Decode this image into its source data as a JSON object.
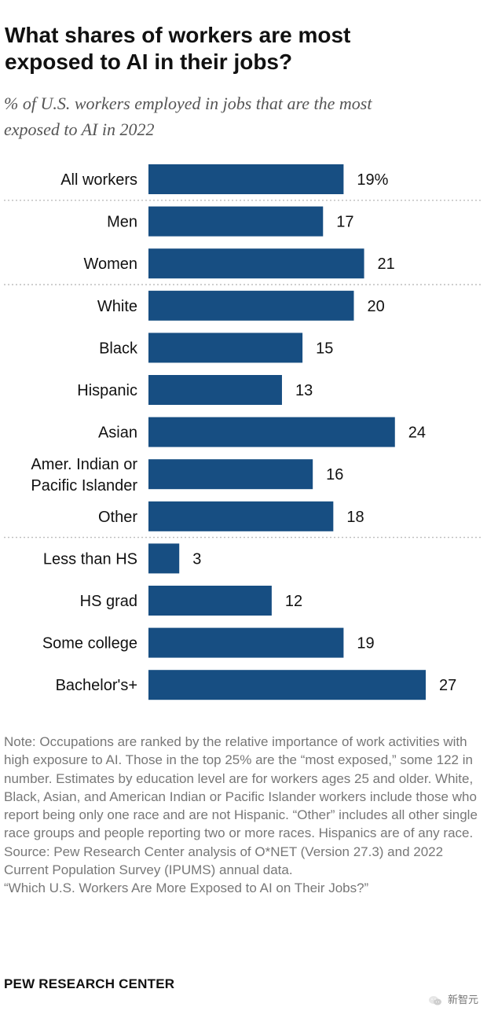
{
  "header": {
    "title": "What shares of workers are most\nexposed to AI in their jobs?",
    "subtitle": "% of U.S. workers employed in jobs that are the most\nexposed to AI in 2022"
  },
  "chart_data": {
    "type": "bar",
    "orientation": "horizontal",
    "categories": [
      "All workers",
      "Men",
      "Women",
      "White",
      "Black",
      "Hispanic",
      "Asian",
      "Amer. Indian or\nPacific Islander",
      "Other",
      "Less than HS",
      "HS grad",
      "Some college",
      "Bachelor's+"
    ],
    "values": [
      19,
      17,
      21,
      20,
      15,
      13,
      24,
      16,
      18,
      3,
      12,
      19,
      27
    ],
    "value_labels": [
      "19%",
      "17",
      "21",
      "20",
      "15",
      "13",
      "24",
      "16",
      "18",
      "3",
      "12",
      "19",
      "27"
    ],
    "title": "",
    "xlabel": "",
    "ylabel": "",
    "xlim": [
      0,
      27
    ],
    "group_separators_after": [
      0,
      2,
      8
    ],
    "bar_color": "#174e82",
    "separator_color": "#bdbdbd",
    "grid": false,
    "legend": "none"
  },
  "notes": [
    "Note: Occupations are ranked by the relative importance of work activities with high exposure to AI. Those in the top 25% are the “most exposed,” some 122 in number. Estimates by education level are for workers ages 25 and older. White, Black, Asian, and American Indian or Pacific Islander workers include those who report being only one race and are not Hispanic. “Other” includes all other single race groups and people reporting two or more races. Hispanics are of any race.",
    "Source: Pew Research Center analysis of O*NET (Version 27.3) and 2022 Current Population Survey (IPUMS) annual data.",
    "“Which U.S. Workers Are More Exposed to AI on Their Jobs?”"
  ],
  "footer": {
    "brand": "PEW RESEARCH CENTER",
    "watermark_text": "新智元",
    "watermark_icon": "wechat-icon"
  }
}
